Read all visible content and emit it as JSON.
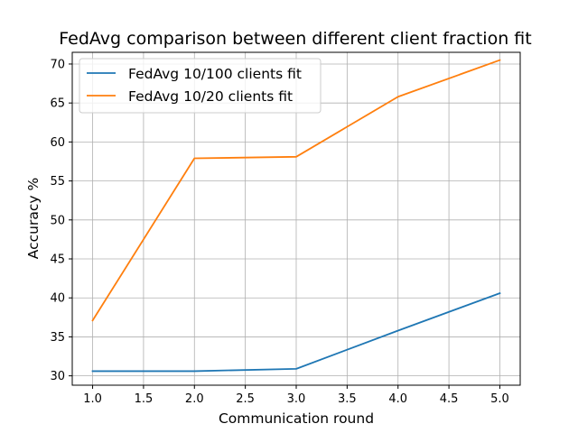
{
  "chart_data": {
    "type": "line",
    "title": "FedAvg comparison between different client fraction fit",
    "xlabel": "Communication round",
    "ylabel": "Accuracy %",
    "x": [
      1.0,
      2.0,
      3.0,
      4.0,
      5.0
    ],
    "xlim": [
      0.8,
      5.2
    ],
    "ylim": [
      28.8,
      71.5
    ],
    "xticks": [
      1.0,
      1.5,
      2.0,
      2.5,
      3.0,
      3.5,
      4.0,
      4.5,
      5.0
    ],
    "xtick_labels": [
      "1.0",
      "1.5",
      "2.0",
      "2.5",
      "3.0",
      "3.5",
      "4.0",
      "4.5",
      "5.0"
    ],
    "yticks": [
      30,
      35,
      40,
      45,
      50,
      55,
      60,
      65,
      70
    ],
    "ytick_labels": [
      "30",
      "35",
      "40",
      "45",
      "50",
      "55",
      "60",
      "65",
      "70"
    ],
    "grid": true,
    "legend_position": "top-left",
    "series": [
      {
        "name": "FedAvg 10/100 clients fit",
        "color": "#1f77b4",
        "values": [
          30.6,
          30.6,
          30.9,
          35.8,
          40.6
        ]
      },
      {
        "name": "FedAvg 10/20 clients fit",
        "color": "#ff7f0e",
        "values": [
          37.1,
          57.9,
          58.1,
          65.8,
          70.5
        ]
      }
    ]
  }
}
